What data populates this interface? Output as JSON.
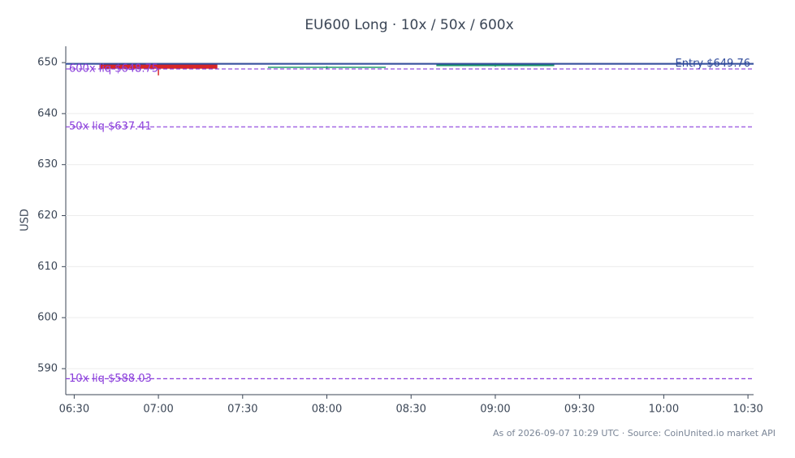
{
  "chart_data": {
    "type": "candlestick",
    "title": "EU600 Long · 10x / 50x / 600x",
    "y_label": "USD",
    "footer": "As of 2026-09-07 10:29 UTC · Source: CoinUnited.io market API",
    "x": [
      "07:00",
      "08:00",
      "09:00"
    ],
    "open": [
      649.7,
      649.0,
      649.3
    ],
    "high": [
      649.8,
      649.3,
      649.9
    ],
    "low": [
      647.5,
      648.8,
      649.2
    ],
    "close": [
      648.8,
      649.2,
      649.8
    ],
    "up_color": "#1f9a6c",
    "down_color": "#d62728",
    "xlim": [
      "06:27",
      "10:32"
    ],
    "xticks": [
      "06:30",
      "07:00",
      "07:30",
      "08:00",
      "08:30",
      "09:00",
      "09:30",
      "10:00",
      "10:30"
    ],
    "ylim": [
      584.9,
      653.2
    ],
    "yticks": [
      590,
      600,
      610,
      620,
      630,
      640,
      650
    ],
    "grid": true,
    "levels": [
      {
        "label": "Entry $649.76",
        "value": 649.76,
        "color": "#2f4a9b",
        "style": "solid",
        "side": "right"
      },
      {
        "label": "600x liq $648.75",
        "value": 648.75,
        "color": "#8a3ddb",
        "style": "dashed",
        "side": "left"
      },
      {
        "label": "50x liq $637.41",
        "value": 637.41,
        "color": "#8a3ddb",
        "style": "dashed",
        "side": "left"
      },
      {
        "label": "10x liq $588.03",
        "value": 588.03,
        "color": "#8a3ddb",
        "style": "dashed",
        "side": "left"
      }
    ]
  }
}
